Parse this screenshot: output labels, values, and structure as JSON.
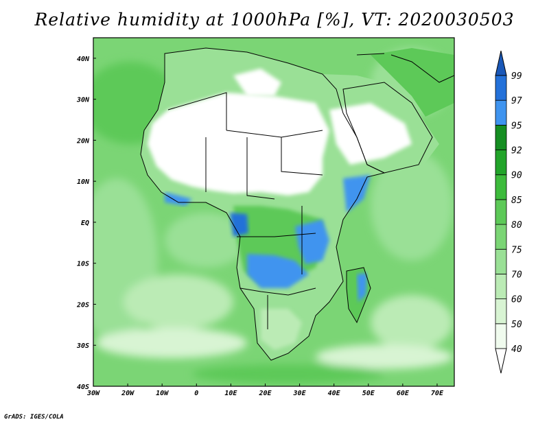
{
  "title": "Relative humidity at 1000hPa [%], VT: 2020030503",
  "credit": "GrADS: IGES/COLA",
  "map": {
    "variable": "Relative humidity",
    "level": "1000hPa",
    "units": "%",
    "valid_time": "2020030503",
    "region": "Africa",
    "lon_range": [
      -30,
      75
    ],
    "lat_range": [
      -40,
      45
    ],
    "land_color": "#ffffff",
    "border_color": "#000000",
    "x_ticks": [
      "30W",
      "20W",
      "10W",
      "0",
      "10E",
      "20E",
      "30E",
      "40E",
      "50E",
      "60E",
      "70E"
    ],
    "y_ticks": [
      "40N",
      "30N",
      "20N",
      "10N",
      "EQ",
      "10S",
      "20S",
      "30S",
      "40S"
    ]
  },
  "colorbar": {
    "levels": [
      "40",
      "50",
      "60",
      "70",
      "75",
      "80",
      "85",
      "90",
      "92",
      "95",
      "97",
      "99"
    ],
    "colors": [
      "#f0fbee",
      "#d8f4d3",
      "#bbebb5",
      "#9ae096",
      "#7bd575",
      "#5dc958",
      "#3dbb3c",
      "#22a42a",
      "#158e22",
      "#3f94ef",
      "#2471d9",
      "#1a58b8"
    ],
    "under_color": "#ffffff",
    "over_color": "#1a58b8"
  }
}
